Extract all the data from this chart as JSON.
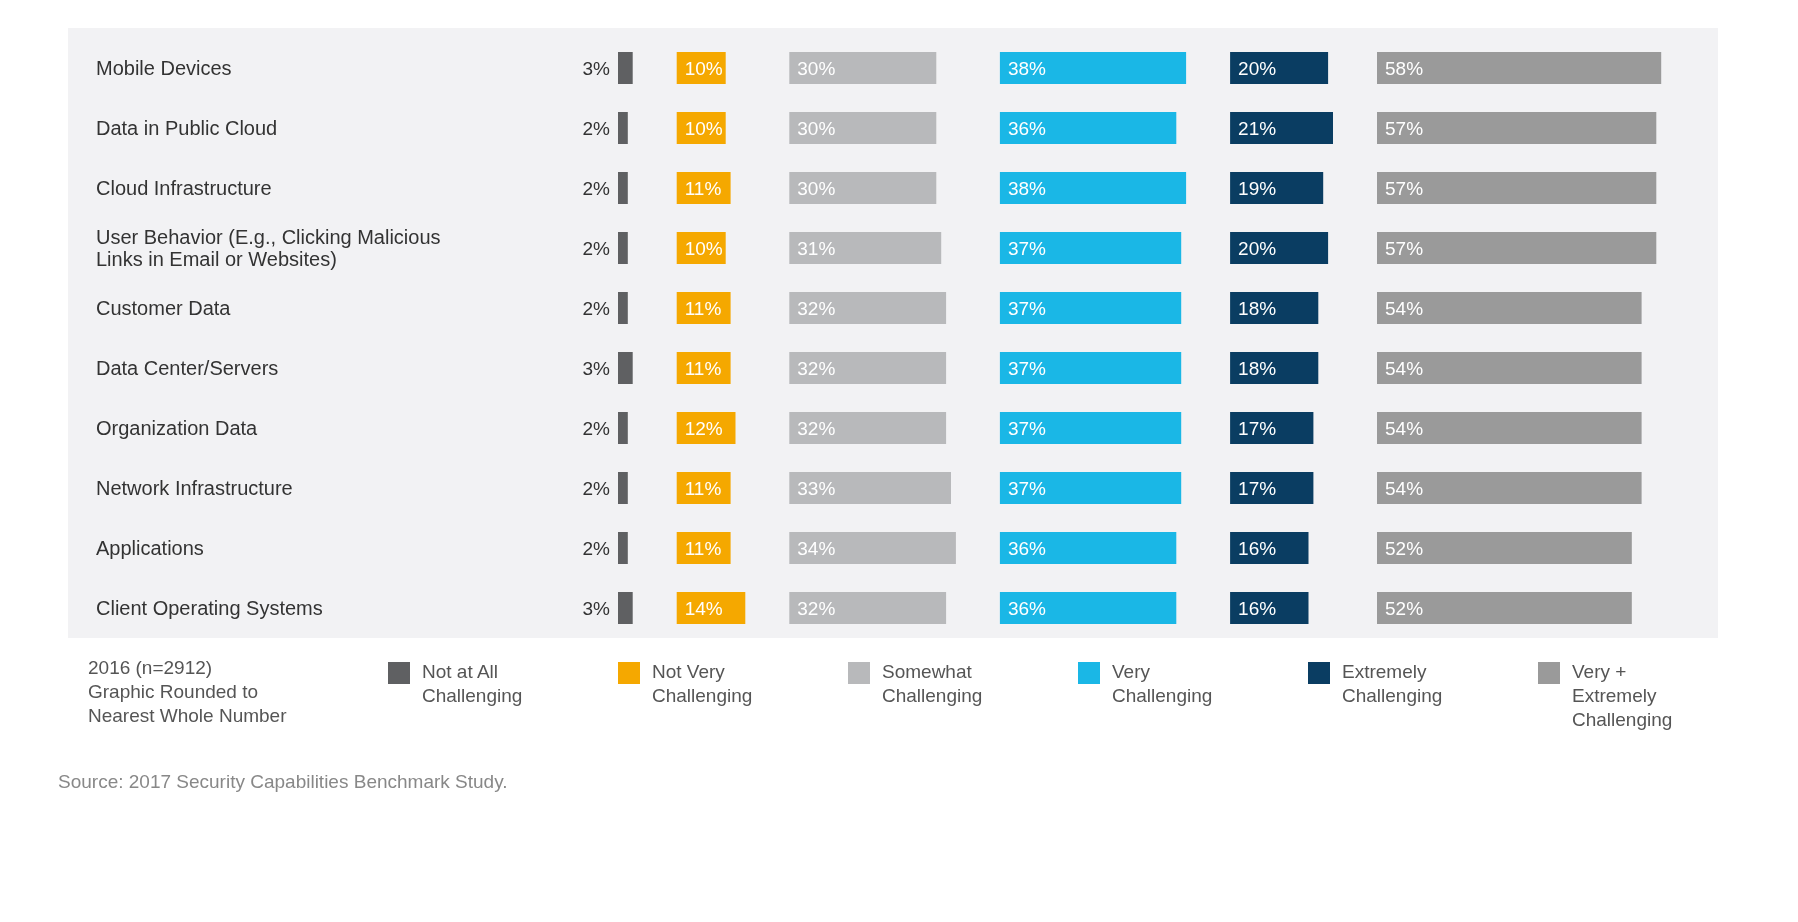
{
  "chart_data": [
    {
      "type": "bar",
      "orientation": "horizontal",
      "legend": "bottom",
      "categories": [
        "Mobile Devices",
        "Data in Public Cloud",
        "Cloud Infrastructure",
        "User Behavior (E.g., Clicking Malicious Links in Email or Websites)",
        "Customer Data",
        "Data Center/Servers",
        "Organization Data",
        "Network Infrastructure",
        "Applications",
        "Client Operating Systems"
      ],
      "series": [
        {
          "name": "Not at All Challenging",
          "color": "#5f6062",
          "values": [
            3,
            2,
            2,
            2,
            2,
            3,
            2,
            2,
            2,
            3
          ],
          "value_labels": [
            "3%",
            "2%",
            "2%",
            "2%",
            "2%",
            "3%",
            "2%",
            "2%",
            "2%",
            "3%"
          ]
        }
      ],
      "annotations": [
        "2016 (n=2912)",
        "Graphic Rounded to Nearest Whole Number",
        "Source: 2017 Security Capabilities Benchmark Study."
      ]
    },
    {
      "type": "bar",
      "orientation": "horizontal",
      "legend": "bottom",
      "categories": [
        null,
        null,
        null,
        null,
        null,
        null,
        null,
        null,
        null,
        null
      ],
      "series": [
        {
          "name": "Not Very Challenging",
          "color": "#f5a800",
          "values": [
            10,
            10,
            11,
            10,
            11,
            11,
            12,
            11,
            11,
            14
          ],
          "value_labels": [
            "10%",
            "10%",
            "11%",
            "10%",
            "11%",
            "11%",
            "12%",
            "11%",
            "11%",
            "14%"
          ]
        }
      ]
    },
    {
      "type": "bar",
      "orientation": "horizontal",
      "legend": "bottom",
      "categories": [
        null,
        null,
        null,
        null,
        null,
        null,
        null,
        null,
        null,
        null
      ],
      "series": [
        {
          "name": "Somewhat Challenging",
          "color": "#b8b9bb",
          "values": [
            30,
            30,
            30,
            31,
            32,
            32,
            32,
            33,
            34,
            32
          ],
          "value_labels": [
            "30%",
            "30%",
            "30%",
            "31%",
            "32%",
            "32%",
            "32%",
            "33%",
            "34%",
            "32%"
          ]
        }
      ]
    },
    {
      "type": "bar",
      "orientation": "horizontal",
      "legend": "bottom",
      "categories": [
        null,
        null,
        null,
        null,
        null,
        null,
        null,
        null,
        null,
        null
      ],
      "series": [
        {
          "name": "Very Challenging",
          "color": "#1ab7e6",
          "values": [
            38,
            36,
            38,
            37,
            37,
            37,
            37,
            37,
            36,
            36
          ],
          "value_labels": [
            "38%",
            "36%",
            "38%",
            "37%",
            "37%",
            "37%",
            "37%",
            "37%",
            "36%",
            "36%"
          ]
        }
      ]
    },
    {
      "type": "bar",
      "orientation": "horizontal",
      "legend": "bottom",
      "categories": [
        null,
        null,
        null,
        null,
        null,
        null,
        null,
        null,
        null,
        null
      ],
      "series": [
        {
          "name": "Extremely Challenging",
          "color": "#0a3d62",
          "values": [
            20,
            21,
            19,
            20,
            18,
            18,
            17,
            17,
            16,
            16
          ],
          "value_labels": [
            "20%",
            "21%",
            "19%",
            "20%",
            "18%",
            "18%",
            "17%",
            "17%",
            "16%",
            "16%"
          ]
        }
      ]
    },
    {
      "type": "bar",
      "orientation": "horizontal",
      "legend": "bottom",
      "categories": [
        null,
        null,
        null,
        null,
        null,
        null,
        null,
        null,
        null,
        null
      ],
      "series": [
        {
          "name": "Very + Extremely Challenging",
          "color": "#9a9a9a",
          "values": [
            58,
            57,
            57,
            57,
            54,
            54,
            54,
            54,
            52,
            52
          ],
          "value_labels": [
            "58%",
            "57%",
            "57%",
            "57%",
            "54%",
            "54%",
            "54%",
            "54%",
            "52%",
            "52%"
          ]
        }
      ]
    }
  ]
}
